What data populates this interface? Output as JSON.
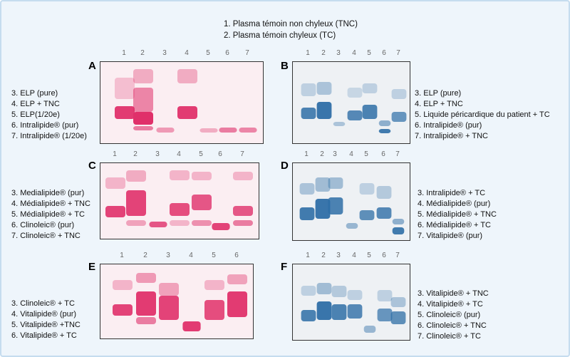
{
  "legend_top": [
    "1. Plasma témoin non chyleux (TNC)",
    "2. Plasma témoin chyleux (TC)"
  ],
  "colors": {
    "pink_stain": "#e0306a",
    "blue_stain": "#2e6ea6",
    "frame_bg": "#eef5fb",
    "frame_border": "#c5dcef"
  },
  "panels": [
    {
      "letter": "A",
      "stain": "pink",
      "lanes": [
        "1",
        "2",
        "3",
        "4",
        "5",
        "6",
        "7"
      ],
      "labels": [
        "3. ELP (pure)",
        "4. ELP + TNC",
        "5. ELP(1/20e)",
        "6. Intralipide® (pur)",
        "7. Intralipide® (1/20e)"
      ]
    },
    {
      "letter": "B",
      "stain": "blue",
      "lanes": [
        "1",
        "2",
        "3",
        "4",
        "5",
        "6",
        "7"
      ],
      "labels": [
        "3. ELP (pure)",
        "4. ELP + TNC",
        "5. Liquide péricardique du patient + TC",
        "6. Intralipide® (pur)",
        "7. Intralipide® + TNC"
      ]
    },
    {
      "letter": "C",
      "stain": "pink",
      "lanes": [
        "1",
        "2",
        "3",
        "4",
        "5",
        "6",
        "7"
      ],
      "labels": [
        "3. Medialipide® (pur)",
        "4. Médialipide® + TNC",
        "5. Médialipide® + TC",
        "6. Clinoleic® (pur)",
        "7. Clinoleic® + TNC"
      ]
    },
    {
      "letter": "D",
      "stain": "blue",
      "lanes": [
        "1",
        "2",
        "3",
        "4",
        "5",
        "6",
        "7"
      ],
      "labels": [
        "3. Intralipide® + TC",
        "4. Médialipide® (pur)",
        "5. Médialipide® + TNC",
        "6. Médialipide® + TC",
        "7. Vitalipide® (pur)"
      ]
    },
    {
      "letter": "E",
      "stain": "pink",
      "lanes": [
        "1",
        "2",
        "3",
        "4",
        "5",
        "6"
      ],
      "labels": [
        "3. Clinoleic® + TC",
        "4. Vitalipide® (pur)",
        "5. Vitalipide® +TNC",
        "6. Vitalipide® + TC"
      ]
    },
    {
      "letter": "F",
      "stain": "blue",
      "lanes": [
        "1",
        "2",
        "3",
        "4",
        "5",
        "6",
        "7"
      ],
      "labels": [
        "3. Vitalipide® + TNC",
        "4. Vitalipide® + TC",
        "5. Clinoleic® (pur)",
        "6. Clinoleic® + TNC",
        "7. Clinoleic® + TC"
      ]
    }
  ]
}
